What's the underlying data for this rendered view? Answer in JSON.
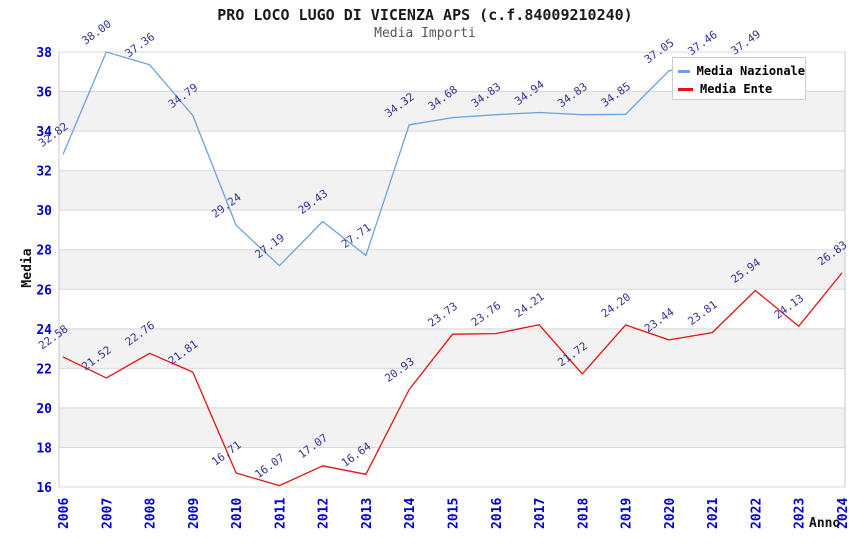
{
  "chart_data": {
    "type": "line",
    "title": "PRO LOCO LUGO DI VICENZA APS (c.f.84009210240)",
    "subtitle": "Media Importi",
    "xlabel": "Anno",
    "ylabel": "Media",
    "x": [
      2006,
      2007,
      2008,
      2009,
      2010,
      2011,
      2012,
      2013,
      2014,
      2015,
      2016,
      2017,
      2018,
      2019,
      2020,
      2021,
      2022,
      2023,
      2024
    ],
    "series": [
      {
        "name": "Media Nazionale",
        "color": "#6da2dc",
        "values": [
          32.82,
          38.0,
          37.36,
          34.79,
          29.24,
          27.19,
          29.43,
          27.71,
          34.32,
          34.68,
          34.83,
          34.94,
          34.83,
          34.85,
          37.05,
          37.46,
          37.49,
          null,
          null
        ]
      },
      {
        "name": "Media Ente",
        "color": "#e61212",
        "values": [
          22.58,
          21.52,
          22.76,
          21.81,
          16.71,
          16.07,
          17.07,
          16.64,
          20.93,
          23.73,
          23.76,
          24.21,
          21.72,
          24.2,
          23.44,
          23.81,
          25.94,
          24.13,
          26.83
        ]
      }
    ],
    "ylim": [
      16,
      38
    ],
    "ytick_step": 2,
    "grid": "horizontal-bands",
    "legend_position": "top-right"
  },
  "colors": {
    "axis_tick_labels": "#0000cc",
    "data_labels": "#333399",
    "gridline": "#d8d8d8",
    "band_gray": "#f2f2f2",
    "band_white": "#ffffff",
    "plot_border": "#c9c9c9"
  }
}
